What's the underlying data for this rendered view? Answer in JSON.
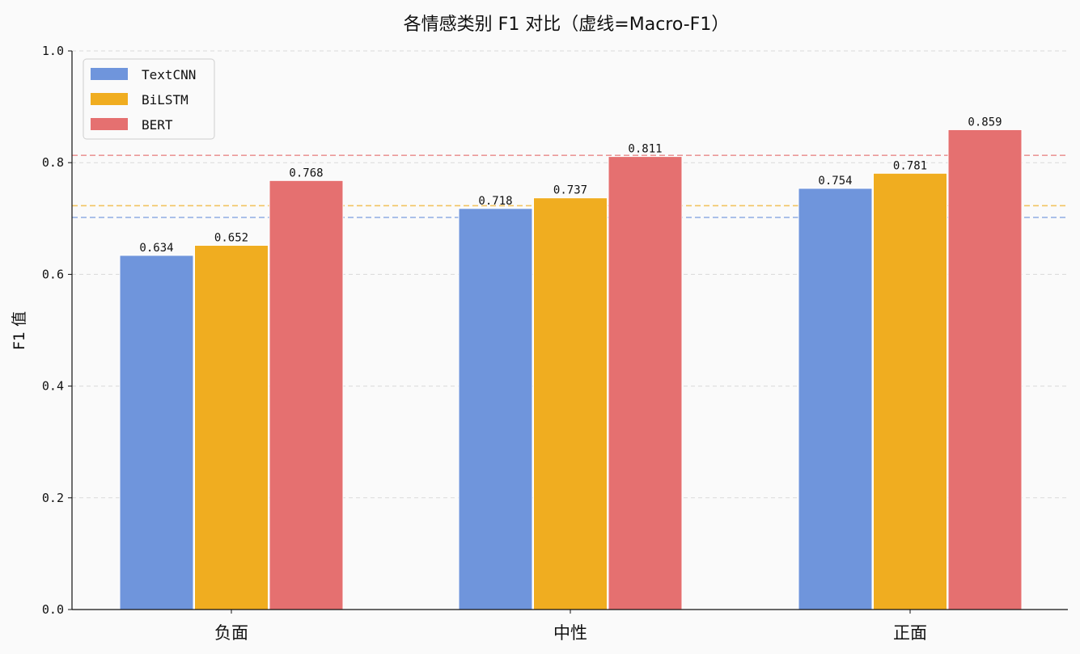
{
  "chart_data": {
    "type": "bar",
    "title": "各情感类别 F1 对比（虚线=Macro-F1）",
    "xlabel": "",
    "ylabel": "F1 值",
    "ylim": [
      0,
      1.0
    ],
    "yticks": [
      "0.0",
      "0.2",
      "0.4",
      "0.6",
      "0.8",
      "1.0"
    ],
    "categories": [
      "负面",
      "中性",
      "正面"
    ],
    "series": [
      {
        "name": "TextCNN",
        "values": [
          0.634,
          0.718,
          0.754
        ],
        "macro_f1": 0.702,
        "color": "#6f95dc"
      },
      {
        "name": "BiLSTM",
        "values": [
          0.652,
          0.737,
          0.781
        ],
        "macro_f1": 0.723,
        "color": "#f0ad20"
      },
      {
        "name": "BERT",
        "values": [
          0.768,
          0.811,
          0.859
        ],
        "macro_f1": 0.813,
        "color": "#e57070"
      }
    ],
    "data_labels": [
      [
        "0.634",
        "0.718",
        "0.754"
      ],
      [
        "0.652",
        "0.737",
        "0.781"
      ],
      [
        "0.768",
        "0.811",
        "0.859"
      ]
    ],
    "grid": "y-dashed",
    "legend": "top-left"
  }
}
